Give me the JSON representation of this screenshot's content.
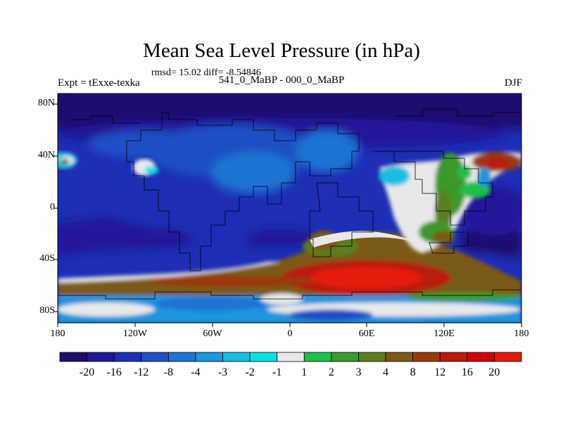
{
  "chart_data": {
    "type": "heatmap",
    "title": "Mean Sea Level Pressure (in hPa)",
    "subtitle": "rmsd= 15.02 diff= -8.54846",
    "left_string": "Expt = tExxe-texka",
    "center_string": "541_0_MaBP - 000_0_MaBP",
    "right_string": "DJF",
    "xlim": [
      -180,
      180
    ],
    "ylim": [
      -90,
      90
    ],
    "y_ticks": [
      "80N",
      "40N",
      "0",
      "40S",
      "80S"
    ],
    "y_tick_values": [
      80,
      40,
      0,
      -40,
      -80
    ],
    "x_ticks": [
      "180",
      "120W",
      "60W",
      "0",
      "60E",
      "120E",
      "180"
    ],
    "x_tick_values": [
      -180,
      -120,
      -60,
      0,
      60,
      120,
      180
    ],
    "colorbar": {
      "labels": [
        "-20",
        "-16",
        "-12",
        "-8",
        "-4",
        "-3",
        "-2",
        "-1",
        "1",
        "2",
        "3",
        "4",
        "8",
        "12",
        "16",
        "20"
      ],
      "colors": [
        "#1e0b6e",
        "#20189a",
        "#1c2fb5",
        "#1f50c4",
        "#1f73d2",
        "#1c96dc",
        "#12bfdf",
        "#05e2e6",
        "#e8e8e8",
        "#1fbf4a",
        "#3b9a2c",
        "#5c7d1a",
        "#7a5a12",
        "#9a3a0c",
        "#b81a08",
        "#d00000",
        "#e61a0a"
      ]
    }
  }
}
